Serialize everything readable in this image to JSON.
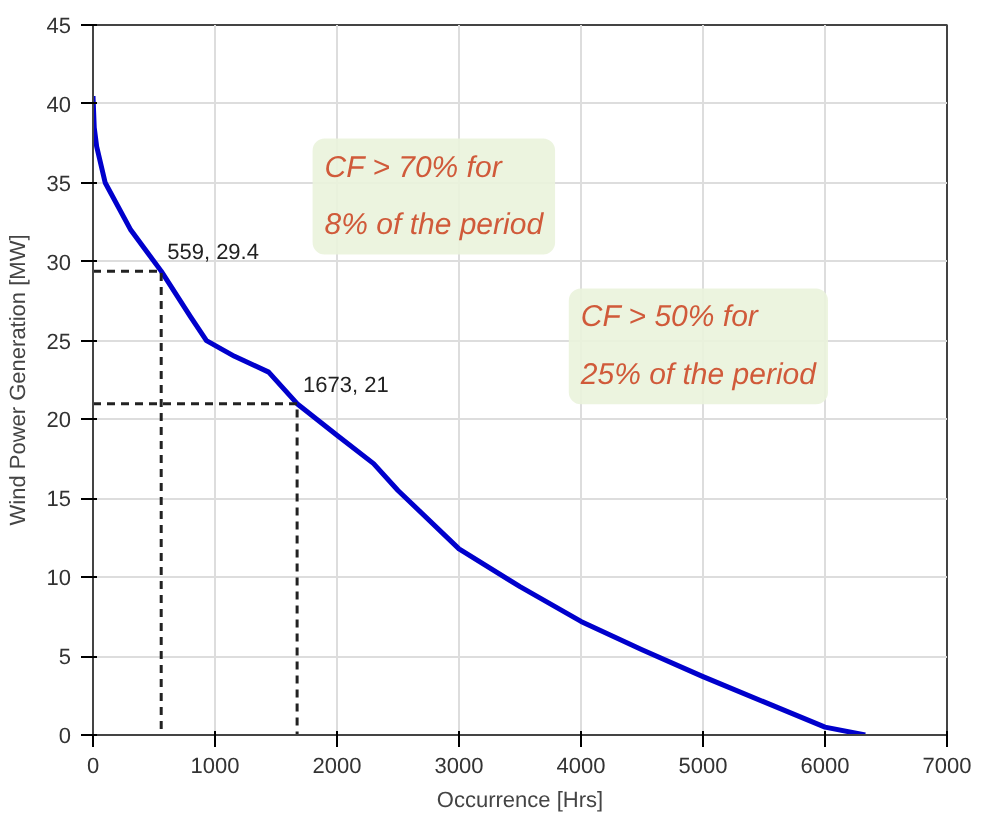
{
  "chart_data": {
    "type": "line",
    "xlabel": "Occurrence [Hrs]",
    "ylabel": "Wind Power Generation [MW]",
    "xlim": [
      0,
      7000
    ],
    "ylim": [
      0,
      45
    ],
    "xticks": [
      0,
      1000,
      2000,
      3000,
      4000,
      5000,
      6000,
      7000
    ],
    "yticks": [
      0,
      5,
      10,
      15,
      20,
      25,
      30,
      35,
      40,
      45
    ],
    "grid": true,
    "marker": "none",
    "series": [
      {
        "color": "#0000cc",
        "line_style": "solid",
        "x": [
          0,
          10,
          30,
          100,
          310,
          559,
          800,
          930,
          1160,
          1440,
          1673,
          2000,
          2300,
          2500,
          3000,
          3500,
          4000,
          4500,
          5000,
          5500,
          6000,
          6330
        ],
        "values": [
          40.5,
          38.5,
          37.3,
          35,
          32,
          29.4,
          26.5,
          25,
          24,
          23,
          21,
          19,
          17.2,
          15.5,
          11.8,
          9.4,
          7.2,
          5.4,
          3.7,
          2.1,
          0.5,
          0
        ]
      },
      {
        "color": "#222222",
        "line_style": "dashed",
        "x": [
          0,
          559,
          559
        ],
        "values": [
          29.4,
          29.4,
          0
        ]
      },
      {
        "color": "#222222",
        "line_style": "dashed",
        "x": [
          0,
          1673,
          1673
        ],
        "values": [
          21,
          21,
          0
        ]
      }
    ],
    "annotations": [
      {
        "text": "559, 29.4",
        "x": 559,
        "y": 29.4
      },
      {
        "text": "1673, 21",
        "x": 1673,
        "y": 21
      },
      "CF > 70% for\n8% of the period",
      "CF > 50% for\n25% of the period"
    ]
  }
}
